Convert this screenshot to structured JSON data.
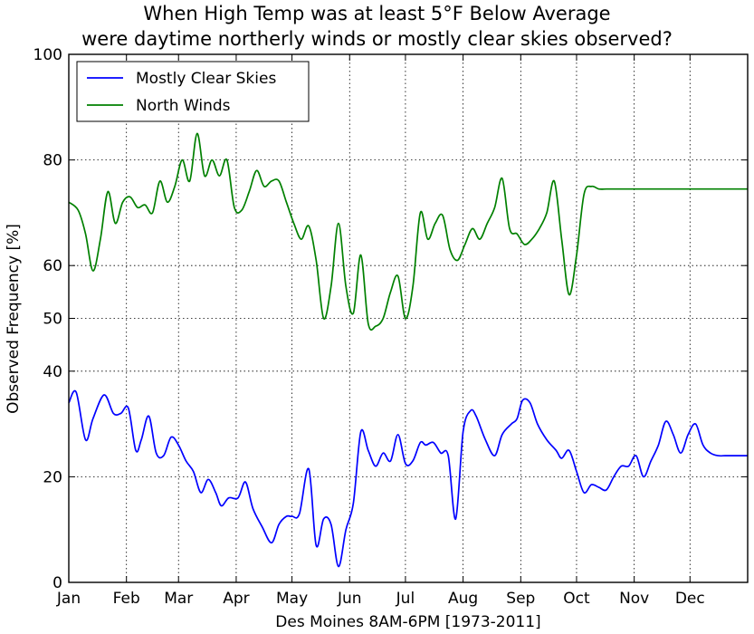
{
  "chart_data": {
    "type": "line",
    "title": [
      "When High Temp was at least 5°F Below Average",
      "were daytime northerly winds or mostly clear skies observed?"
    ],
    "xlabel": "Des Moines 8AM-6PM [1973-2011]",
    "ylabel": "Observed Frequency [%]",
    "x_ticks": [
      "Jan",
      "Feb",
      "Mar",
      "Apr",
      "May",
      "Jun",
      "Jul",
      "Aug",
      "Sep",
      "Oct",
      "Nov",
      "Dec"
    ],
    "y_ticks": [
      0,
      20,
      40,
      50,
      60,
      80,
      100
    ],
    "xlim": [
      1,
      366
    ],
    "ylim": [
      0,
      100
    ],
    "grid": true,
    "legend_position": "top-left",
    "series": [
      {
        "name": "Mostly Clear Skies",
        "color": "#0000ff",
        "x": [
          1,
          5,
          10,
          14,
          20,
          25,
          29,
          33,
          37,
          40,
          44,
          48,
          52,
          56,
          60,
          64,
          68,
          72,
          76,
          80,
          83,
          87,
          92,
          96,
          100,
          105,
          110,
          114,
          118,
          121,
          125,
          130,
          134,
          138,
          142,
          146,
          150,
          154,
          158,
          162,
          166,
          170,
          174,
          178,
          182,
          186,
          190,
          193,
          197,
          201,
          205,
          209,
          213,
          217,
          220,
          225,
          230,
          234,
          239,
          242,
          245,
          249,
          253,
          258,
          263,
          266,
          270,
          274,
          278,
          282,
          286,
          290,
          294,
          298,
          302,
          306,
          310,
          314,
          318,
          322,
          326,
          330,
          334,
          338,
          342,
          346,
          350,
          354,
          358,
          362,
          366
        ],
        "values": [
          34,
          36,
          27,
          31,
          35.5,
          32,
          32,
          33,
          25,
          27,
          31.5,
          24.5,
          24,
          27.5,
          26,
          23,
          21,
          17,
          19.5,
          17,
          14.5,
          16,
          16,
          19,
          14,
          10.5,
          7.5,
          11,
          12.5,
          12.5,
          13,
          21.5,
          7,
          12,
          11,
          3,
          10,
          15,
          28.5,
          25,
          22,
          24.5,
          23,
          28,
          22.5,
          23,
          26.5,
          26,
          26.5,
          24.5,
          24,
          12,
          28.5,
          32.5,
          31.5,
          27,
          24,
          28,
          30,
          31,
          34.5,
          34,
          30,
          27,
          25,
          23.5,
          25,
          21,
          17,
          18.5,
          18,
          17.5,
          20,
          22,
          22,
          24,
          20,
          23,
          26,
          30.5,
          28,
          24.5,
          28,
          30,
          26,
          24.5,
          24,
          24,
          24,
          24,
          24
        ]
      },
      {
        "name": "North Winds",
        "color": "#008000",
        "x": [
          1,
          6,
          10,
          14,
          18,
          22,
          26,
          30,
          34,
          38,
          42,
          46,
          50,
          54,
          58,
          62,
          66,
          70,
          74,
          78,
          82,
          86,
          90,
          94,
          98,
          102,
          106,
          110,
          114,
          118,
          122,
          126,
          130,
          134,
          138,
          142,
          146,
          150,
          154,
          158,
          162,
          166,
          170,
          174,
          178,
          182,
          186,
          190,
          194,
          198,
          202,
          206,
          210,
          214,
          218,
          222,
          226,
          230,
          234,
          238,
          242,
          246,
          250,
          254,
          258,
          262,
          266,
          270,
          274,
          278,
          282,
          286,
          290,
          294,
          298,
          302,
          306,
          310,
          314,
          318,
          322,
          326,
          330,
          334,
          338,
          342,
          346,
          350,
          354,
          358,
          362,
          366
        ],
        "values": [
          72,
          70.5,
          66,
          59,
          65,
          74,
          68,
          72,
          73,
          71,
          71.5,
          70,
          76,
          72,
          75,
          80,
          76,
          85,
          77,
          80,
          77,
          80,
          71,
          70.5,
          74,
          78,
          75,
          76,
          76,
          72,
          68,
          65,
          67.5,
          61,
          50,
          56,
          68,
          56,
          51,
          62,
          49,
          48.5,
          50,
          55,
          58,
          50,
          56,
          70,
          65,
          68,
          69.5,
          63,
          61,
          64,
          67,
          65,
          68,
          71,
          76.5,
          67,
          66,
          64,
          65,
          67,
          70,
          76,
          65,
          54.5,
          62,
          73.5,
          75,
          74.5,
          74.5,
          74.5,
          74.5,
          74.5,
          74.5,
          74.5,
          74.5,
          74.5,
          74.5,
          74.5,
          74.5,
          74.5,
          74.5,
          74.5,
          74.5,
          74.5,
          74.5,
          74.5,
          74.5,
          74.5
        ]
      }
    ]
  }
}
